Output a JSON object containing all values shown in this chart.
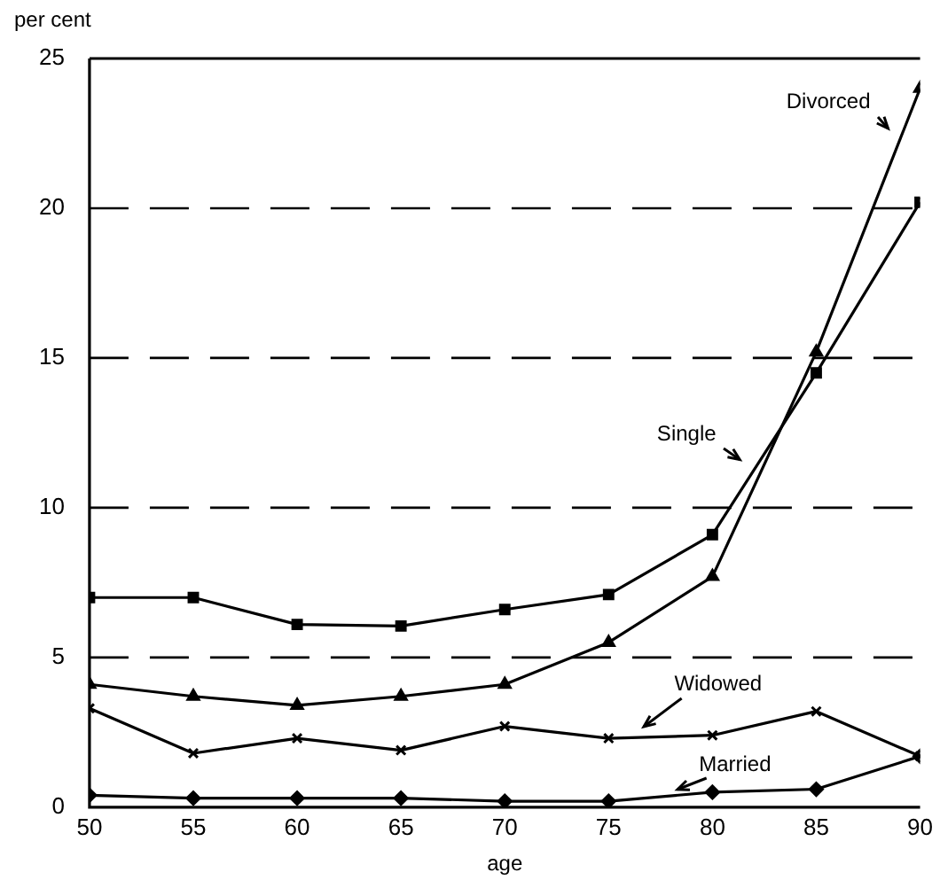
{
  "chart_data": {
    "type": "line",
    "ylabel": "per cent",
    "xlabel": "age",
    "x": [
      50,
      55,
      60,
      65,
      70,
      75,
      80,
      85,
      90
    ],
    "series": [
      {
        "name": "Divorced",
        "color": "#000000",
        "marker": "triangle",
        "values": [
          4.1,
          3.7,
          3.4,
          3.7,
          4.1,
          5.5,
          7.7,
          15.2,
          24.0
        ]
      },
      {
        "name": "Single",
        "color": "#000000",
        "marker": "square",
        "values": [
          7.0,
          7.0,
          6.1,
          6.05,
          6.6,
          7.1,
          9.1,
          14.5,
          20.2
        ]
      },
      {
        "name": "Widowed",
        "color": "#000000",
        "marker": "cross",
        "values": [
          3.3,
          1.8,
          2.3,
          1.9,
          2.7,
          2.3,
          2.4,
          3.2,
          1.7
        ]
      },
      {
        "name": "Married",
        "color": "#000000",
        "marker": "diamond",
        "values": [
          0.4,
          0.3,
          0.3,
          0.3,
          0.2,
          0.2,
          0.5,
          0.6,
          1.7
        ]
      }
    ],
    "xlim": [
      50,
      90
    ],
    "xticks": [
      50,
      55,
      60,
      65,
      70,
      75,
      80,
      85,
      90
    ],
    "ylim": [
      0,
      25
    ],
    "yticks": [
      0,
      5,
      10,
      15,
      20,
      25
    ],
    "grid": "y",
    "legend": false,
    "line_style": "solid"
  }
}
